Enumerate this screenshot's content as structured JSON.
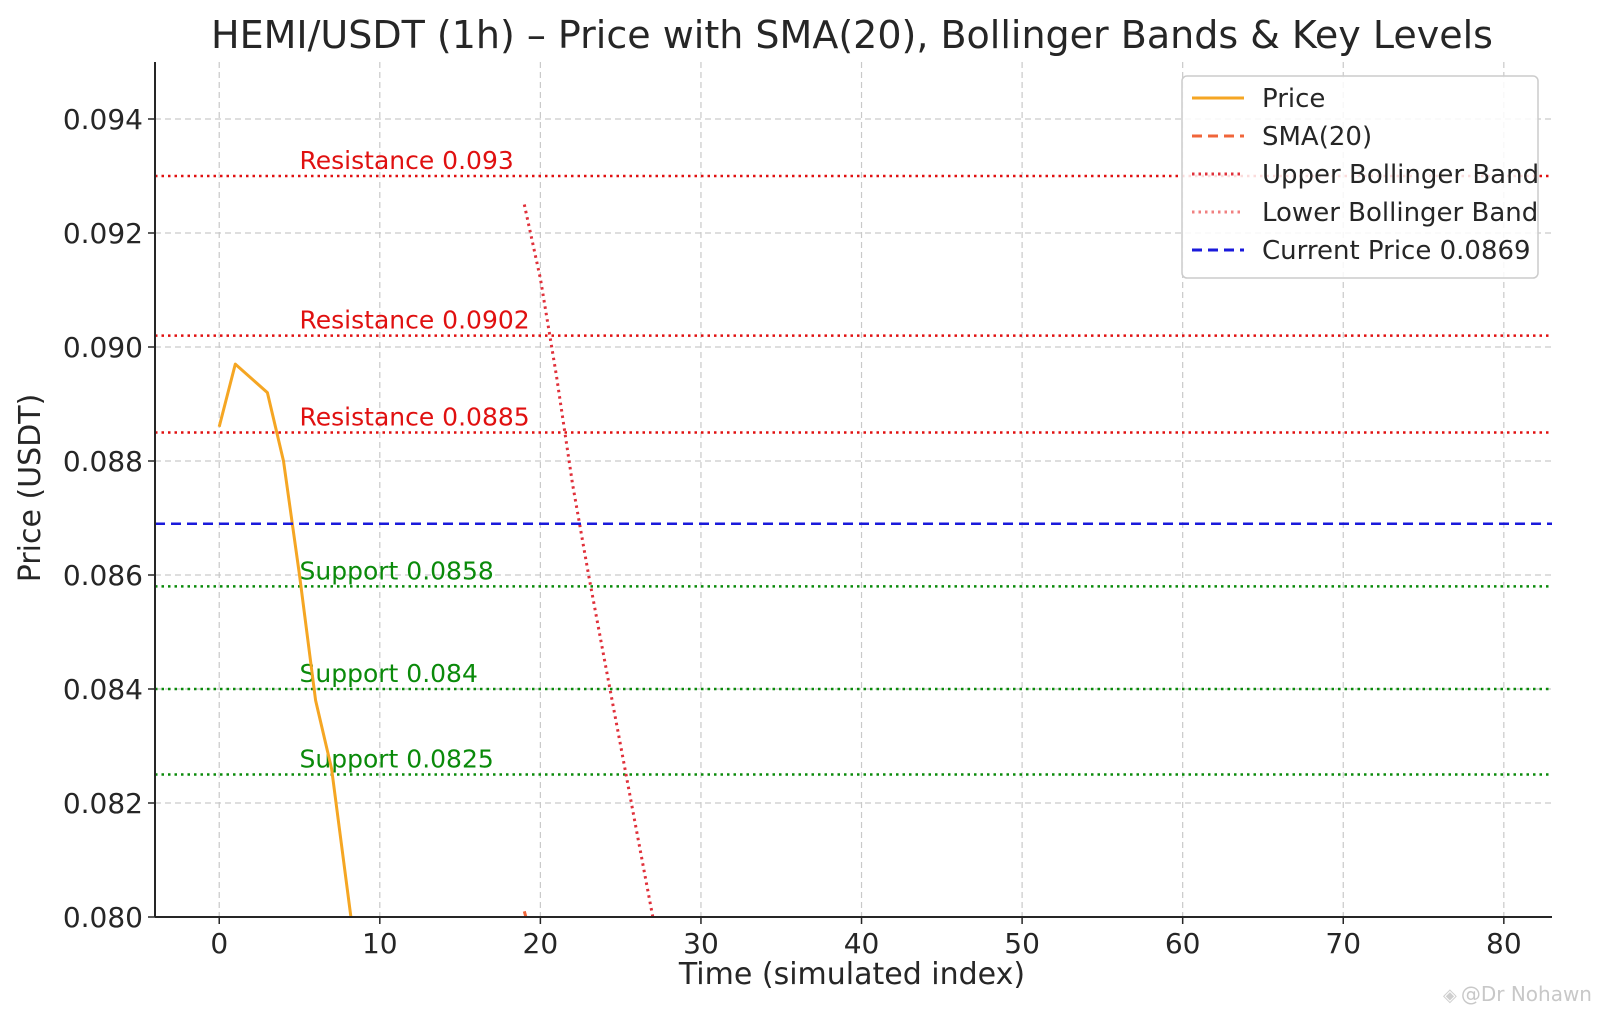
{
  "chart_data": {
    "type": "line",
    "title": "HEMI/USDT (1h) – Price with SMA(20), Bollinger Bands & Key Levels",
    "xlabel": "Time (simulated index)",
    "ylabel": "Price (USDT)",
    "xlim": [
      -4,
      83
    ],
    "ylim": [
      0.08,
      0.095
    ],
    "xticks": [
      0,
      10,
      20,
      30,
      40,
      50,
      60,
      70,
      80
    ],
    "xtick_labels": [
      "0",
      "10",
      "20",
      "30",
      "40",
      "50",
      "60",
      "70",
      "80"
    ],
    "yticks": [
      0.08,
      0.082,
      0.084,
      0.086,
      0.088,
      0.09,
      0.092,
      0.094
    ],
    "ytick_labels": [
      "0.080",
      "0.082",
      "0.084",
      "0.086",
      "0.088",
      "0.090",
      "0.092",
      "0.094"
    ],
    "grid": true,
    "legend_position": "top-right",
    "series": [
      {
        "name": "Price",
        "style": "solid",
        "color": "#f5a623",
        "x": [
          0,
          1,
          3,
          4,
          5,
          6,
          7,
          8.2
        ],
        "y": [
          0.0886,
          0.0897,
          0.0892,
          0.088,
          0.086,
          0.0838,
          0.0826,
          0.08
        ]
      },
      {
        "name": "SMA(20)",
        "style": "dashed",
        "color": "#f0653a",
        "x": [
          19,
          19.1
        ],
        "y": [
          0.0801,
          0.08
        ]
      },
      {
        "name": "Upper Bollinger Band",
        "style": "dotted",
        "color": "#e0303a",
        "x": [
          19,
          20,
          21,
          22,
          23,
          24,
          25,
          26,
          27
        ],
        "y": [
          0.0925,
          0.0912,
          0.0895,
          0.0876,
          0.086,
          0.0845,
          0.083,
          0.0815,
          0.08
        ]
      },
      {
        "name": "Lower Bollinger Band",
        "style": "dotted",
        "color": "#f08080",
        "x": [],
        "y": []
      },
      {
        "name": "Current Price 0.0869",
        "style": "dashed",
        "color": "#1a1adb",
        "hline": 0.0869
      }
    ],
    "levels": [
      {
        "label": "Resistance 0.093",
        "value": 0.093,
        "color": "#e01010"
      },
      {
        "label": "Resistance 0.0902",
        "value": 0.0902,
        "color": "#e01010"
      },
      {
        "label": "Resistance 0.0885",
        "value": 0.0885,
        "color": "#e01010"
      },
      {
        "label": "Support 0.0858",
        "value": 0.0858,
        "color": "#0a8a0a"
      },
      {
        "label": "Support 0.084",
        "value": 0.084,
        "color": "#0a8a0a"
      },
      {
        "label": "Support 0.0825",
        "value": 0.0825,
        "color": "#0a8a0a"
      }
    ]
  },
  "watermark": {
    "text": "@Dr Nohawn",
    "icon": "binance-square-icon"
  }
}
